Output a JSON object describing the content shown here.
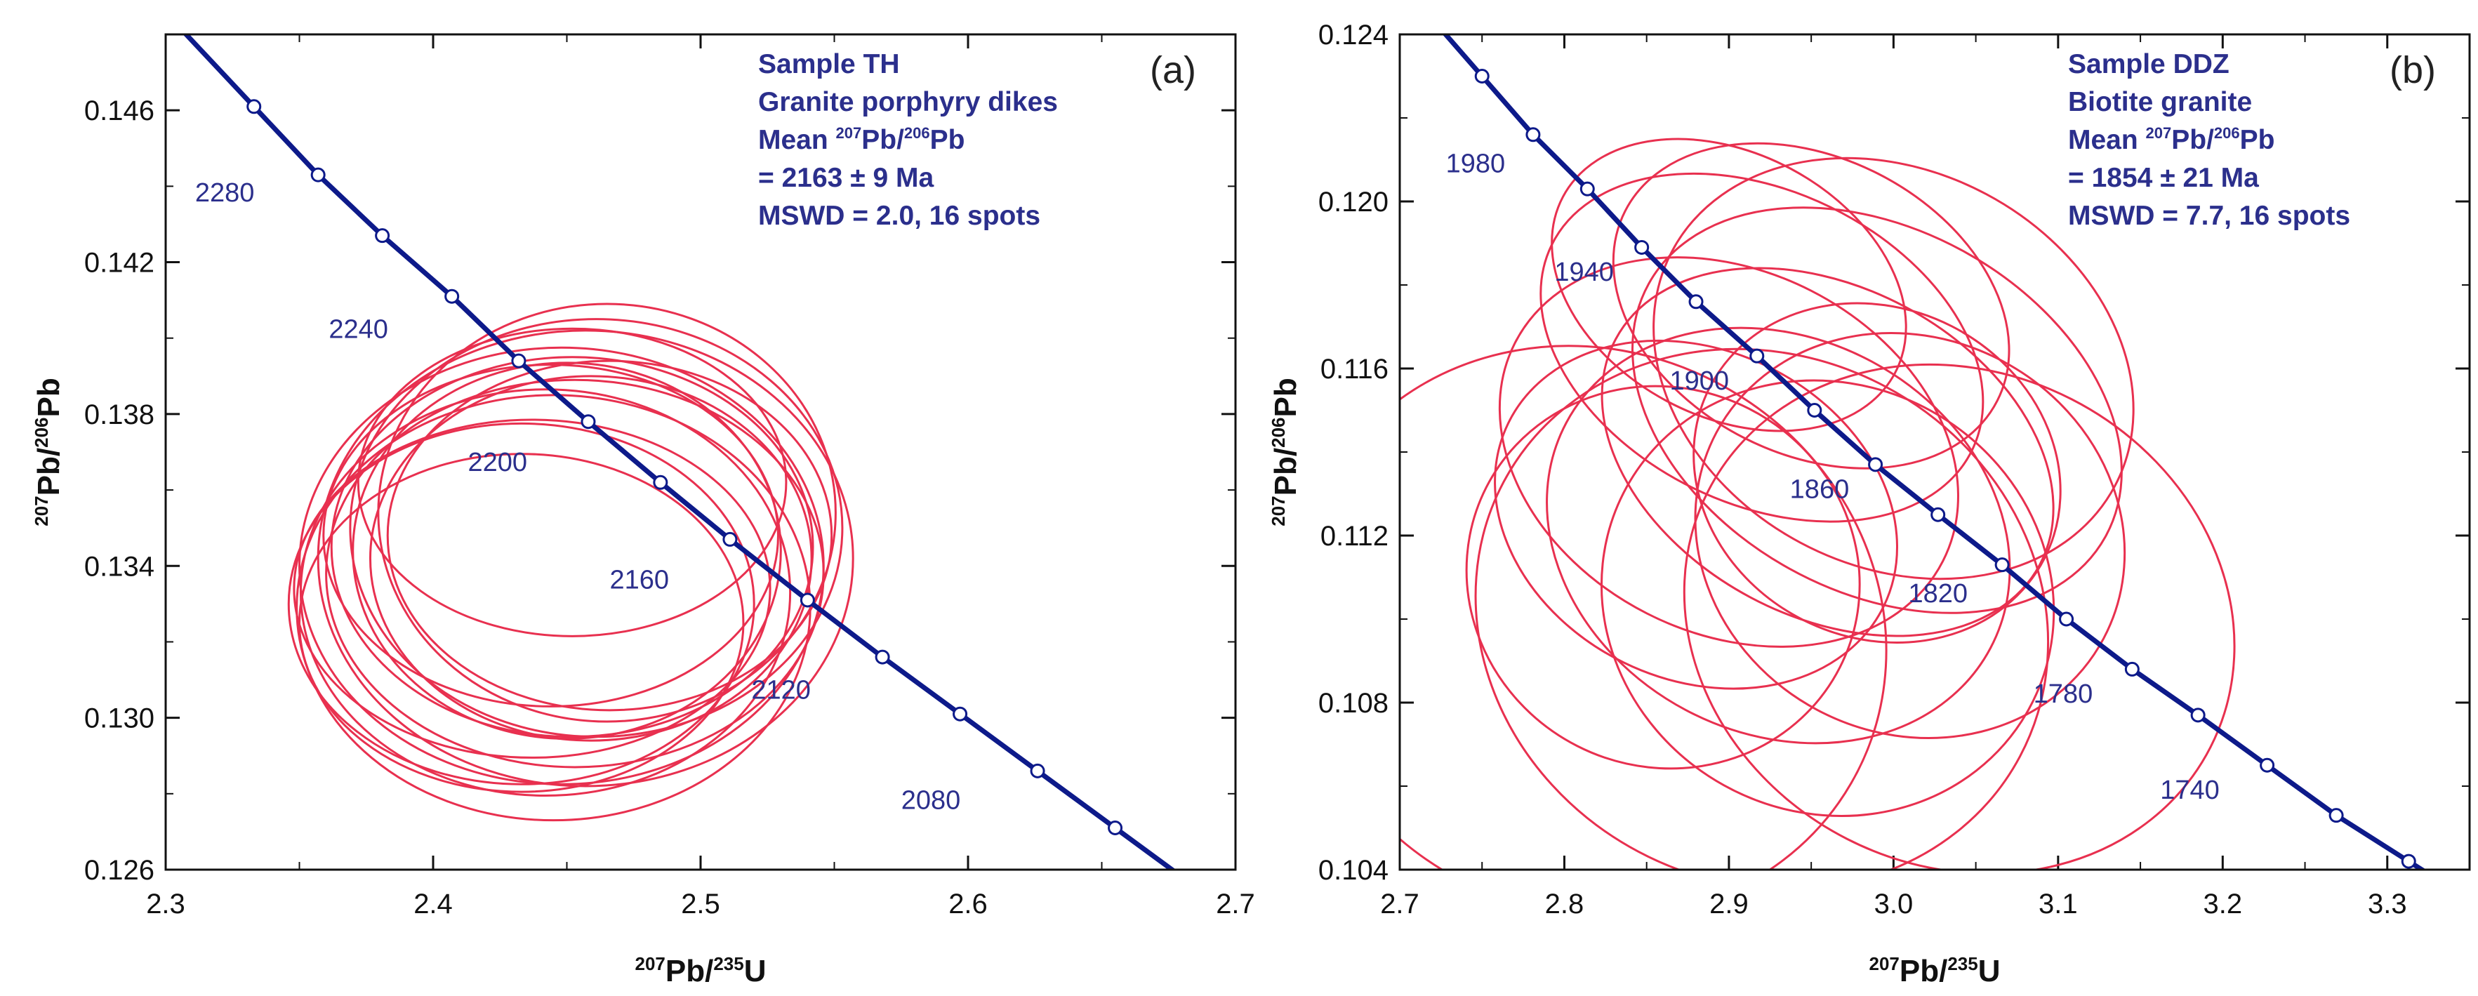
{
  "chart_data": [
    {
      "type": "concordia",
      "panel_label": "(a)",
      "xlabel": {
        "sup1": "207",
        "main1": "Pb/",
        "sup2": "235",
        "main2": "U"
      },
      "ylabel": {
        "sup1": "207",
        "main1": "Pb/",
        "sup2": "206",
        "main2": "Pb"
      },
      "xlim": [
        2.3,
        2.7
      ],
      "ylim": [
        0.126,
        0.148
      ],
      "xticks": [
        2.3,
        2.4,
        2.5,
        2.6,
        2.7
      ],
      "xtick_labels": [
        "2.3",
        "2.4",
        "2.5",
        "2.6",
        "2.7"
      ],
      "yticks": [
        0.126,
        0.13,
        0.134,
        0.138,
        0.142,
        0.146
      ],
      "ytick_labels": [
        "0.126",
        "0.130",
        "0.134",
        "0.138",
        "0.142",
        "0.146"
      ],
      "info": {
        "sample": "Sample TH",
        "rock": "Granite porphyry dikes",
        "mean_prefix": "Mean ",
        "mean_sup1": "207",
        "mean_mid": "Pb/",
        "mean_sup2": "206",
        "mean_suffix": "Pb",
        "age": "= 2163 ± 9 Ma",
        "mswd": "MSWD = 2.0, 16 spots"
      },
      "concordia_points": [
        {
          "age": 2280,
          "x": 2.333,
          "y": 0.1461
        },
        {
          "age": 2260,
          "x": 2.357,
          "y": 0.1443
        },
        {
          "age": 2240,
          "x": 2.381,
          "y": 0.1427
        },
        {
          "age": 2220,
          "x": 2.407,
          "y": 0.1411
        },
        {
          "age": 2200,
          "x": 2.432,
          "y": 0.1394
        },
        {
          "age": 2180,
          "x": 2.458,
          "y": 0.1378
        },
        {
          "age": 2160,
          "x": 2.485,
          "y": 0.1362
        },
        {
          "age": 2140,
          "x": 2.511,
          "y": 0.1347
        },
        {
          "age": 2120,
          "x": 2.54,
          "y": 0.1331
        },
        {
          "age": 2100,
          "x": 2.568,
          "y": 0.1316
        },
        {
          "age": 2080,
          "x": 2.597,
          "y": 0.1301
        },
        {
          "age": 2060,
          "x": 2.626,
          "y": 0.1286
        },
        {
          "age": 2040,
          "x": 2.655,
          "y": 0.1271
        }
      ],
      "age_labels": [
        {
          "text": "2280",
          "x": 2.311,
          "y": 0.1436
        },
        {
          "text": "2240",
          "x": 2.361,
          "y": 0.14
        },
        {
          "text": "2200",
          "x": 2.413,
          "y": 0.1365
        },
        {
          "text": "2160",
          "x": 2.466,
          "y": 0.1334
        },
        {
          "text": "2120",
          "x": 2.519,
          "y": 0.1305
        },
        {
          "text": "2080",
          "x": 2.575,
          "y": 0.1276
        }
      ],
      "ellipses": [
        {
          "cx": 2.452,
          "cy": 0.1362,
          "w": 0.16,
          "h": 0.0081
        },
        {
          "cx": 2.444,
          "cy": 0.1348,
          "w": 0.17,
          "h": 0.009
        },
        {
          "cx": 2.452,
          "cy": 0.1345,
          "w": 0.18,
          "h": 0.01
        },
        {
          "cx": 2.433,
          "cy": 0.133,
          "w": 0.174,
          "h": 0.0095
        },
        {
          "cx": 2.448,
          "cy": 0.134,
          "w": 0.196,
          "h": 0.0115
        },
        {
          "cx": 2.457,
          "cy": 0.1342,
          "w": 0.2,
          "h": 0.012
        },
        {
          "cx": 2.465,
          "cy": 0.1354,
          "w": 0.171,
          "h": 0.011
        },
        {
          "cx": 2.453,
          "cy": 0.1338,
          "w": 0.186,
          "h": 0.0102
        },
        {
          "cx": 2.437,
          "cy": 0.1334,
          "w": 0.178,
          "h": 0.0089
        },
        {
          "cx": 2.461,
          "cy": 0.135,
          "w": 0.184,
          "h": 0.011
        },
        {
          "cx": 2.459,
          "cy": 0.1342,
          "w": 0.165,
          "h": 0.0096
        },
        {
          "cx": 2.445,
          "cy": 0.1329,
          "w": 0.192,
          "h": 0.0112
        },
        {
          "cx": 2.442,
          "cy": 0.1333,
          "w": 0.183,
          "h": 0.0107
        },
        {
          "cx": 2.433,
          "cy": 0.1325,
          "w": 0.166,
          "h": 0.0089
        },
        {
          "cx": 2.466,
          "cy": 0.1348,
          "w": 0.166,
          "h": 0.0092
        },
        {
          "cx": 2.45,
          "cy": 0.1344,
          "w": 0.16,
          "h": 0.0099
        }
      ]
    },
    {
      "type": "concordia",
      "panel_label": "(b)",
      "xlabel": {
        "sup1": "207",
        "main1": "Pb/",
        "sup2": "235",
        "main2": "U"
      },
      "ylabel": {
        "sup1": "207",
        "main1": "Pb/",
        "sup2": "206",
        "main2": "Pb"
      },
      "xlim": [
        2.7,
        3.35
      ],
      "ylim": [
        0.104,
        0.124
      ],
      "xticks": [
        2.7,
        2.8,
        2.9,
        3.0,
        3.1,
        3.2,
        3.3
      ],
      "xtick_labels": [
        "2.7",
        "2.8",
        "2.9",
        "3.0",
        "3.1",
        "3.2",
        "3.3"
      ],
      "yticks": [
        0.104,
        0.108,
        0.112,
        0.116,
        0.12,
        0.124
      ],
      "ytick_labels": [
        "0.104",
        "0.108",
        "0.112",
        "0.116",
        "0.120",
        "0.124"
      ],
      "info": {
        "sample": "Sample DDZ",
        "rock": "Biotite granite",
        "mean_prefix": "Mean ",
        "mean_sup1": "207",
        "mean_mid": "Pb/",
        "mean_sup2": "206",
        "mean_suffix": "Pb",
        "age": "= 1854 ± 21 Ma",
        "mswd": "MSWD = 7.7, 16 spots"
      },
      "concordia_points": [
        {
          "age": 2000,
          "x": 2.75,
          "y": 0.123
        },
        {
          "age": 1980,
          "x": 2.781,
          "y": 0.1216
        },
        {
          "age": 1960,
          "x": 2.814,
          "y": 0.1203
        },
        {
          "age": 1940,
          "x": 2.847,
          "y": 0.1189
        },
        {
          "age": 1920,
          "x": 2.88,
          "y": 0.1176
        },
        {
          "age": 1900,
          "x": 2.917,
          "y": 0.1163
        },
        {
          "age": 1880,
          "x": 2.952,
          "y": 0.115
        },
        {
          "age": 1860,
          "x": 2.989,
          "y": 0.1137
        },
        {
          "age": 1840,
          "x": 3.027,
          "y": 0.1125
        },
        {
          "age": 1820,
          "x": 3.066,
          "y": 0.1113
        },
        {
          "age": 1800,
          "x": 3.105,
          "y": 0.11
        },
        {
          "age": 1780,
          "x": 3.145,
          "y": 0.1088
        },
        {
          "age": 1760,
          "x": 3.185,
          "y": 0.1077
        },
        {
          "age": 1740,
          "x": 3.227,
          "y": 0.1065
        },
        {
          "age": 1720,
          "x": 3.269,
          "y": 0.1053
        },
        {
          "age": 1700,
          "x": 3.313,
          "y": 0.1042
        }
      ],
      "age_labels": [
        {
          "text": "1980",
          "x": 2.728,
          "y": 0.1207
        },
        {
          "text": "1940",
          "x": 2.794,
          "y": 0.1181
        },
        {
          "text": "1900",
          "x": 2.864,
          "y": 0.1155
        },
        {
          "text": "1860",
          "x": 2.937,
          "y": 0.1129
        },
        {
          "text": "1820",
          "x": 3.009,
          "y": 0.1104
        },
        {
          "text": "1780",
          "x": 3.085,
          "y": 0.108
        },
        {
          "text": "1740",
          "x": 3.162,
          "y": 0.1057
        }
      ],
      "ellipses": [
        {
          "cx": 2.815,
          "cy": 0.1097,
          "w": 0.34,
          "h": 0.0145,
          "rot": 60
        },
        {
          "cx": 2.92,
          "cy": 0.11,
          "w": 0.32,
          "h": 0.014,
          "rot": 62
        },
        {
          "cx": 3.04,
          "cy": 0.11,
          "w": 0.3,
          "h": 0.0135,
          "rot": 63
        },
        {
          "cx": 2.92,
          "cy": 0.1165,
          "w": 0.19,
          "h": 0.0112,
          "rot": 64
        },
        {
          "cx": 2.9,
          "cy": 0.118,
          "w": 0.16,
          "h": 0.009,
          "rot": 62
        },
        {
          "cx": 2.95,
          "cy": 0.1175,
          "w": 0.18,
          "h": 0.01,
          "rot": 63
        },
        {
          "cx": 2.96,
          "cy": 0.114,
          "w": 0.2,
          "h": 0.0115,
          "rot": 62
        },
        {
          "cx": 2.99,
          "cy": 0.115,
          "w": 0.22,
          "h": 0.0125,
          "rot": 61
        },
        {
          "cx": 3.0,
          "cy": 0.116,
          "w": 0.24,
          "h": 0.012,
          "rot": 62
        },
        {
          "cx": 2.9,
          "cy": 0.114,
          "w": 0.22,
          "h": 0.0115,
          "rot": 63
        },
        {
          "cx": 2.88,
          "cy": 0.1125,
          "w": 0.2,
          "h": 0.01,
          "rot": 64
        },
        {
          "cx": 2.93,
          "cy": 0.112,
          "w": 0.24,
          "h": 0.0115,
          "rot": 62
        },
        {
          "cx": 2.96,
          "cy": 0.1105,
          "w": 0.26,
          "h": 0.011,
          "rot": 61
        },
        {
          "cx": 3.01,
          "cy": 0.112,
          "w": 0.24,
          "h": 0.0105,
          "rot": 62
        },
        {
          "cx": 2.86,
          "cy": 0.111,
          "w": 0.23,
          "h": 0.0095,
          "rot": 63
        },
        {
          "cx": 2.99,
          "cy": 0.1135,
          "w": 0.2,
          "h": 0.009,
          "rot": 63
        }
      ]
    }
  ],
  "colors": {
    "concordia": "#0d1a8a",
    "ellipse": "#e8304f",
    "text": "#2b2f8c",
    "node_fill": "#ffffff"
  }
}
